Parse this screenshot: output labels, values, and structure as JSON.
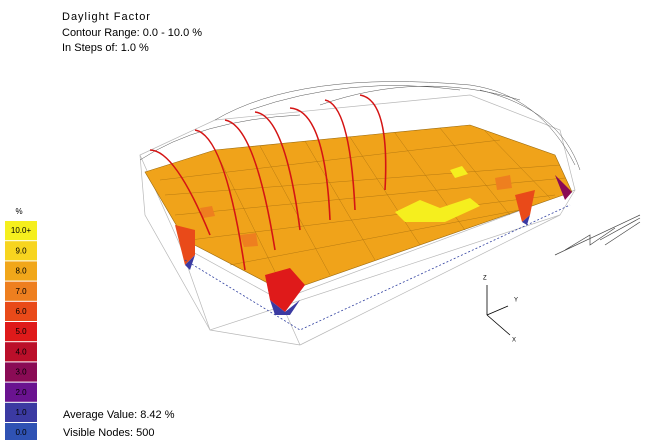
{
  "header": {
    "title": "Daylight Factor",
    "range": "Contour Range: 0.0 - 10.0 %",
    "steps": "In Steps of: 1.0 %"
  },
  "legend": {
    "unit": "%",
    "items": [
      {
        "label": "10.0+",
        "color": "#f5ef1e",
        "text_color": "#000000"
      },
      {
        "label": "9.0",
        "color": "#f7d51f",
        "text_color": "#000000"
      },
      {
        "label": "8.0",
        "color": "#f1a71a",
        "text_color": "#000000"
      },
      {
        "label": "7.0",
        "color": "#ee7f1f",
        "text_color": "#000000"
      },
      {
        "label": "6.0",
        "color": "#e94a19",
        "text_color": "#000000"
      },
      {
        "label": "5.0",
        "color": "#df1a1a",
        "text_color": "#000000"
      },
      {
        "label": "4.0",
        "color": "#bb0f2a",
        "text_color": "#000000"
      },
      {
        "label": "3.0",
        "color": "#8a0b55",
        "text_color": "#000000"
      },
      {
        "label": "2.0",
        "color": "#6a1390",
        "text_color": "#000000"
      },
      {
        "label": "1.0",
        "color": "#3b3aa2",
        "text_color": "#000000"
      },
      {
        "label": "0.0",
        "color": "#2f52b4",
        "text_color": "#000000"
      }
    ]
  },
  "axes": {
    "z": "Z",
    "y": "Y",
    "x": "X"
  },
  "footer": {
    "average": "Average Value: 8.42 %",
    "nodes": "Visible Nodes: 500"
  }
}
